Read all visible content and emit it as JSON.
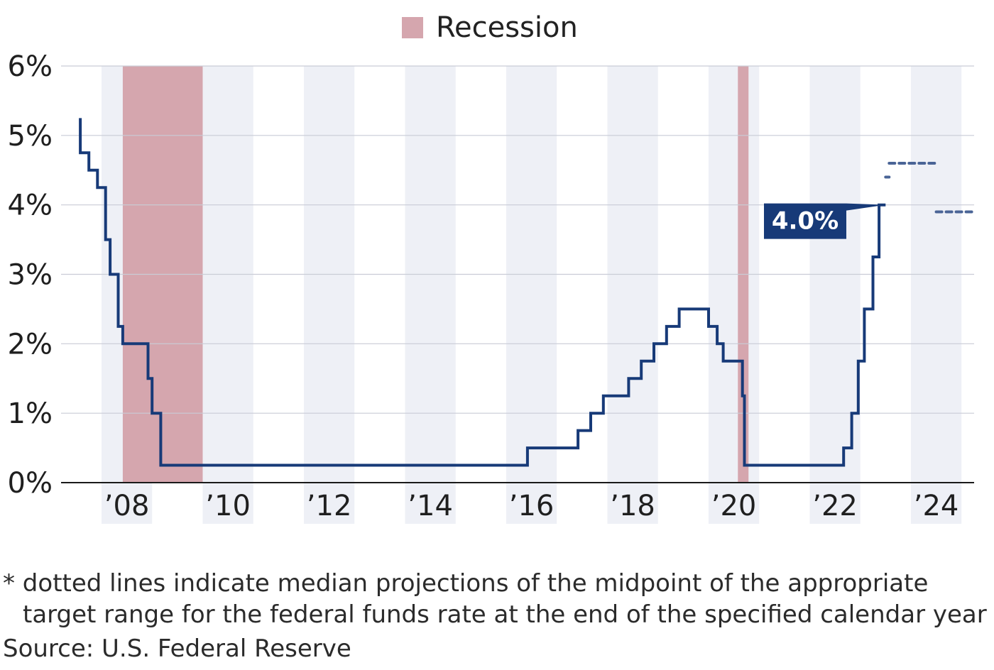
{
  "chart_data": {
    "type": "line",
    "legend": {
      "label": "Recession",
      "color": "#d5a6ae",
      "placement": "top-center"
    },
    "y_ticks": [
      "0%",
      "1%",
      "2%",
      "3%",
      "4%",
      "5%",
      "6%"
    ],
    "ylim": [
      0,
      6
    ],
    "x_ticks": [
      "’08",
      "’10",
      "’12",
      "’14",
      "’16",
      "’18",
      "’20",
      "’22",
      "’24"
    ],
    "x_tick_years": [
      2008,
      2010,
      2012,
      2014,
      2016,
      2018,
      2020,
      2022,
      2024
    ],
    "xlim": [
      2006.7,
      2024.75
    ],
    "recessions": [
      [
        2007.92,
        2009.5
      ],
      [
        2020.08,
        2020.29
      ]
    ],
    "series": [
      {
        "type": "step",
        "color": "#173a78",
        "points": [
          [
            2007.08,
            5.25
          ],
          [
            2007.08,
            4.75
          ],
          [
            2007.25,
            4.75
          ],
          [
            2007.25,
            4.5
          ],
          [
            2007.42,
            4.5
          ],
          [
            2007.42,
            4.25
          ],
          [
            2007.58,
            4.25
          ],
          [
            2007.58,
            3.5
          ],
          [
            2007.67,
            3.5
          ],
          [
            2007.67,
            3.0
          ],
          [
            2007.83,
            3.0
          ],
          [
            2007.83,
            2.25
          ],
          [
            2007.92,
            2.25
          ],
          [
            2007.92,
            2.0
          ],
          [
            2008.42,
            2.0
          ],
          [
            2008.42,
            1.5
          ],
          [
            2008.5,
            1.5
          ],
          [
            2008.5,
            1.0
          ],
          [
            2008.67,
            1.0
          ],
          [
            2008.67,
            0.25
          ],
          [
            2015.92,
            0.25
          ],
          [
            2015.92,
            0.5
          ],
          [
            2016.92,
            0.5
          ],
          [
            2016.92,
            0.75
          ],
          [
            2017.17,
            0.75
          ],
          [
            2017.17,
            1.0
          ],
          [
            2017.42,
            1.0
          ],
          [
            2017.42,
            1.25
          ],
          [
            2017.92,
            1.25
          ],
          [
            2017.92,
            1.5
          ],
          [
            2018.17,
            1.5
          ],
          [
            2018.17,
            1.75
          ],
          [
            2018.42,
            1.75
          ],
          [
            2018.42,
            2.0
          ],
          [
            2018.67,
            2.0
          ],
          [
            2018.67,
            2.25
          ],
          [
            2018.92,
            2.25
          ],
          [
            2018.92,
            2.5
          ],
          [
            2019.5,
            2.5
          ],
          [
            2019.5,
            2.25
          ],
          [
            2019.67,
            2.25
          ],
          [
            2019.67,
            2.0
          ],
          [
            2019.79,
            2.0
          ],
          [
            2019.79,
            1.75
          ],
          [
            2020.17,
            1.75
          ],
          [
            2020.17,
            1.25
          ],
          [
            2020.21,
            1.25
          ],
          [
            2020.21,
            0.25
          ],
          [
            2022.17,
            0.25
          ],
          [
            2022.17,
            0.5
          ],
          [
            2022.33,
            0.5
          ],
          [
            2022.33,
            1.0
          ],
          [
            2022.46,
            1.0
          ],
          [
            2022.46,
            1.75
          ],
          [
            2022.58,
            1.75
          ],
          [
            2022.58,
            2.5
          ],
          [
            2022.75,
            2.5
          ],
          [
            2022.75,
            3.25
          ],
          [
            2022.87,
            3.25
          ],
          [
            2022.87,
            4.0
          ],
          [
            2023.0,
            4.0
          ]
        ]
      }
    ],
    "projections": [
      {
        "points": [
          [
            2023.0,
            4.4
          ],
          [
            2023.07,
            4.4
          ]
        ]
      },
      {
        "points": [
          [
            2023.07,
            4.6
          ],
          [
            2024.0,
            4.6
          ]
        ]
      },
      {
        "points": [
          [
            2024.0,
            3.9
          ],
          [
            2024.75,
            3.9
          ]
        ]
      }
    ],
    "callout": {
      "text": "4.0%",
      "x": 2023.0,
      "y": 4.0,
      "color": "#173a78"
    }
  },
  "footnote": {
    "line1": "* dotted lines indicate median projections of the midpoint of the appropriate",
    "line2": "target range for the federal funds rate at the end of the specified calendar year"
  },
  "source": "Source: U.S. Federal Reserve",
  "colors": {
    "grid": "#c9ccd6",
    "band": "#eef0f6",
    "axis": "#1a1a1a"
  }
}
